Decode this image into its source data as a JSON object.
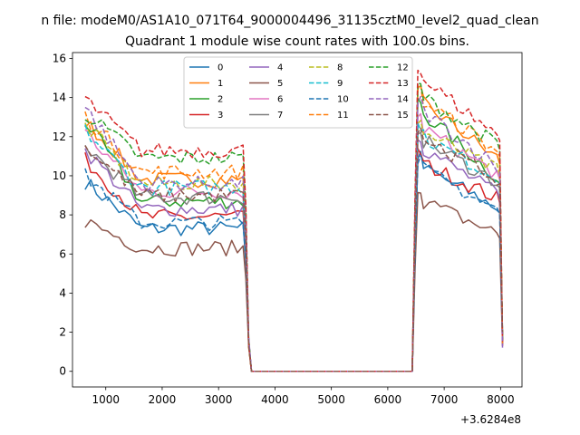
{
  "suptitle": "n file: modeM0/AS1A10_071T64_9000004496_31135cztM0_level2_quad_clean",
  "chart_data": {
    "type": "line",
    "title": "Quadrant 1 module wise count rates with 100.0s bins.",
    "xlabel": "",
    "ylabel": "",
    "x_offset_label": "+3.6284e8",
    "xlim": [
      410,
      8380
    ],
    "ylim": [
      -0.8,
      16.3
    ],
    "xticks": [
      1000,
      2000,
      3000,
      4000,
      5000,
      6000,
      7000,
      8000
    ],
    "yticks": [
      0,
      2,
      4,
      6,
      8,
      10,
      12,
      14,
      16
    ],
    "grid": false,
    "legend_position": "top-center",
    "legend_ncol": 4,
    "x": [
      634,
      734,
      834,
      934,
      1034,
      1134,
      1234,
      1334,
      1434,
      1534,
      1634,
      1734,
      1834,
      1934,
      2034,
      2134,
      2234,
      2334,
      2434,
      2534,
      2634,
      2734,
      2834,
      2934,
      3034,
      3134,
      3234,
      3334,
      3434,
      3484,
      3534,
      3584,
      3634,
      3734,
      3834,
      3934,
      4034,
      4134,
      4234,
      4334,
      4434,
      4534,
      4634,
      4734,
      4834,
      4934,
      5034,
      5134,
      5234,
      5334,
      5434,
      5534,
      5634,
      5734,
      5834,
      5934,
      6034,
      6134,
      6234,
      6334,
      6434,
      6484,
      6534,
      6584,
      6634,
      6734,
      6834,
      6934,
      7034,
      7134,
      7234,
      7334,
      7434,
      7534,
      7634,
      7734,
      7834,
      7934,
      7984,
      8034
    ],
    "series": [
      {
        "name": "0",
        "color": "#1f77b4",
        "dash": "solid",
        "plateau1": 7.3,
        "start1": 9.7,
        "plateau2": 8.3,
        "peak2": 11.0
      },
      {
        "name": "1",
        "color": "#ff7f0e",
        "dash": "solid",
        "plateau1": 9.8,
        "start1": 12.8,
        "plateau2": 10.8,
        "peak2": 14.3
      },
      {
        "name": "2",
        "color": "#2ca02c",
        "dash": "solid",
        "plateau1": 8.7,
        "start1": 12.8,
        "plateau2": 9.8,
        "peak2": 13.8
      },
      {
        "name": "3",
        "color": "#d62728",
        "dash": "solid",
        "plateau1": 7.9,
        "start1": 10.8,
        "plateau2": 8.8,
        "peak2": 11.2
      },
      {
        "name": "4",
        "color": "#9467bd",
        "dash": "solid",
        "plateau1": 8.3,
        "start1": 11.3,
        "plateau2": 9.0,
        "peak2": 12.0
      },
      {
        "name": "5",
        "color": "#8c564b",
        "dash": "solid",
        "plateau1": 6.3,
        "start1": 7.7,
        "plateau2": 7.0,
        "peak2": 9.3
      },
      {
        "name": "6",
        "color": "#e377c2",
        "dash": "solid",
        "plateau1": 9.2,
        "start1": 12.2,
        "plateau2": 10.0,
        "peak2": 13.0
      },
      {
        "name": "7",
        "color": "#7f7f7f",
        "dash": "solid",
        "plateau1": 8.9,
        "start1": 11.5,
        "plateau2": 9.6,
        "peak2": 12.4
      },
      {
        "name": "8",
        "color": "#bcbd22",
        "dash": "dashed",
        "plateau1": 9.6,
        "start1": 12.6,
        "plateau2": 10.2,
        "peak2": 12.8
      },
      {
        "name": "9",
        "color": "#17becf",
        "dash": "dashed",
        "plateau1": 9.4,
        "start1": 12.3,
        "plateau2": 9.8,
        "peak2": 12.6
      },
      {
        "name": "10",
        "color": "#1f77b4",
        "dash": "dashed",
        "plateau1": 7.6,
        "start1": 10.0,
        "plateau2": 8.2,
        "peak2": 10.9
      },
      {
        "name": "11",
        "color": "#ff7f0e",
        "dash": "dashed",
        "plateau1": 10.2,
        "start1": 13.0,
        "plateau2": 11.2,
        "peak2": 14.4
      },
      {
        "name": "12",
        "color": "#2ca02c",
        "dash": "dashed",
        "plateau1": 10.9,
        "start1": 13.2,
        "plateau2": 11.5,
        "peak2": 14.6
      },
      {
        "name": "13",
        "color": "#d62728",
        "dash": "dashed",
        "plateau1": 11.3,
        "start1": 13.9,
        "plateau2": 12.0,
        "peak2": 15.5
      },
      {
        "name": "14",
        "color": "#9467bd",
        "dash": "dashed",
        "plateau1": 9.6,
        "start1": 13.5,
        "plateau2": 10.4,
        "peak2": 13.9
      },
      {
        "name": "15",
        "color": "#8c564b",
        "dash": "dashed",
        "plateau1": 9.0,
        "start1": 11.5,
        "plateau2": 9.8,
        "peak2": 12.5
      }
    ]
  }
}
